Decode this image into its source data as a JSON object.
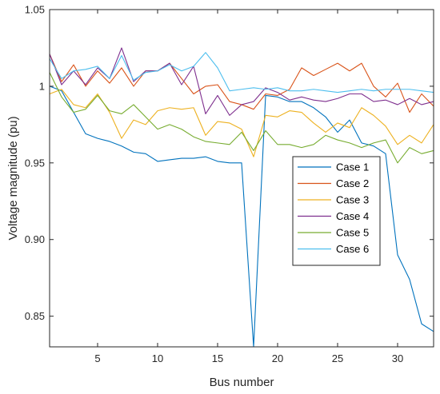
{
  "chart_data": {
    "type": "line",
    "title": "",
    "xlabel": "Bus number",
    "ylabel": "Voltage magnitude (pu)",
    "xlim": [
      1,
      33
    ],
    "ylim": [
      0.83,
      1.05
    ],
    "xticks": [
      5,
      10,
      15,
      20,
      25,
      30
    ],
    "yticks": [
      0.85,
      0.9,
      0.95,
      1,
      1.05
    ],
    "grid": false,
    "legend_position": "right-center",
    "x": [
      1,
      2,
      3,
      4,
      5,
      6,
      7,
      8,
      9,
      10,
      11,
      12,
      13,
      14,
      15,
      16,
      17,
      18,
      19,
      20,
      21,
      22,
      23,
      24,
      25,
      26,
      27,
      28,
      29,
      30,
      31,
      32,
      33
    ],
    "series": [
      {
        "name": "Case 1",
        "color": "#0072BD",
        "values": [
          1.0,
          0.997,
          0.983,
          0.969,
          0.966,
          0.964,
          0.961,
          0.957,
          0.956,
          0.951,
          0.952,
          0.953,
          0.953,
          0.954,
          0.951,
          0.95,
          0.95,
          0.83,
          0.994,
          0.993,
          0.99,
          0.99,
          0.986,
          0.98,
          0.97,
          0.978,
          0.963,
          0.961,
          0.956,
          0.89,
          0.874,
          0.845,
          0.84
        ]
      },
      {
        "name": "Case 2",
        "color": "#D95319",
        "values": [
          1.021,
          1.003,
          1.014,
          1.0,
          1.01,
          1.002,
          1.012,
          1.0,
          1.01,
          1.01,
          1.015,
          1.005,
          0.995,
          1.0,
          1.001,
          0.99,
          0.988,
          0.985,
          0.995,
          0.994,
          0.998,
          1.012,
          1.007,
          1.011,
          1.015,
          1.01,
          1.015,
          1.0,
          0.993,
          1.002,
          0.983,
          0.995,
          0.987
        ]
      },
      {
        "name": "Case 3",
        "color": "#EDB120",
        "values": [
          0.995,
          0.998,
          0.988,
          0.986,
          0.995,
          0.983,
          0.966,
          0.978,
          0.975,
          0.984,
          0.986,
          0.985,
          0.986,
          0.968,
          0.977,
          0.976,
          0.972,
          0.954,
          0.981,
          0.98,
          0.984,
          0.983,
          0.976,
          0.97,
          0.976,
          0.973,
          0.986,
          0.981,
          0.974,
          0.962,
          0.968,
          0.963,
          0.975
        ]
      },
      {
        "name": "Case 4",
        "color": "#7E2F8E",
        "values": [
          1.021,
          1.001,
          1.01,
          1.001,
          1.012,
          1.005,
          1.025,
          1.003,
          1.01,
          1.01,
          1.015,
          1.001,
          1.013,
          0.982,
          0.994,
          0.981,
          0.988,
          0.99,
          0.999,
          0.996,
          0.991,
          0.993,
          0.991,
          0.99,
          0.992,
          0.995,
          0.995,
          0.99,
          0.991,
          0.988,
          0.992,
          0.988,
          0.99
        ]
      },
      {
        "name": "Case 5",
        "color": "#77AC30",
        "values": [
          1.009,
          0.993,
          0.983,
          0.985,
          0.994,
          0.984,
          0.982,
          0.988,
          0.98,
          0.972,
          0.975,
          0.972,
          0.967,
          0.964,
          0.963,
          0.962,
          0.97,
          0.958,
          0.971,
          0.962,
          0.962,
          0.96,
          0.962,
          0.968,
          0.965,
          0.963,
          0.96,
          0.963,
          0.965,
          0.95,
          0.96,
          0.956,
          0.958
        ]
      },
      {
        "name": "Case 6",
        "color": "#4DBEEE",
        "values": [
          1.018,
          1.005,
          1.01,
          1.011,
          1.013,
          1.005,
          1.02,
          1.004,
          1.009,
          1.01,
          1.014,
          1.01,
          1.013,
          1.022,
          1.012,
          0.997,
          0.998,
          0.999,
          0.998,
          0.999,
          0.997,
          0.997,
          0.998,
          0.997,
          0.996,
          0.997,
          0.998,
          0.997,
          0.998,
          0.998,
          0.998,
          0.997,
          0.996
        ]
      }
    ]
  }
}
